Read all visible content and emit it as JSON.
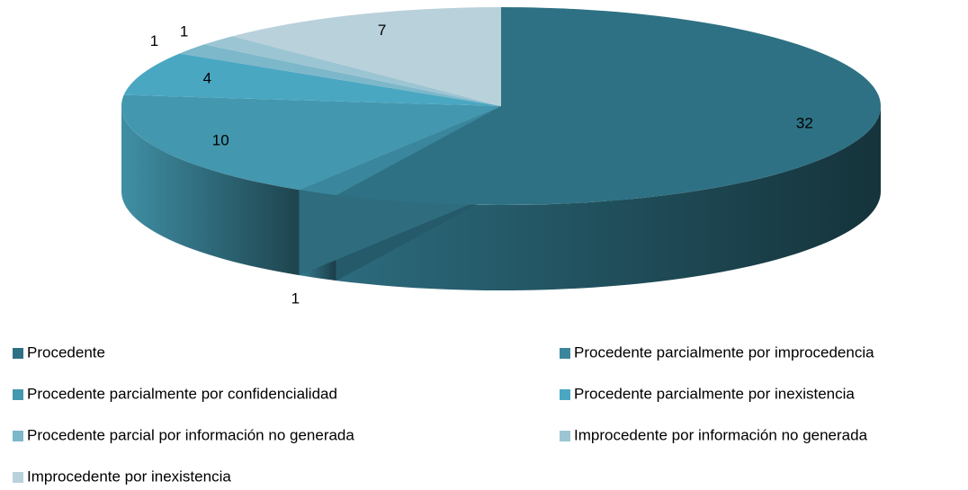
{
  "chart_data": {
    "type": "pie3d",
    "categories": [
      "Procedente",
      "Procedente parcialmente por improcedencia",
      "Procedente parcialmente por confidencialidad",
      "Procedente parcialmente por inexistencia",
      "Procedente parcial por información no generada",
      "Improcedente por información no generada",
      "Improcedente por inexistencia"
    ],
    "values": [
      32,
      1,
      10,
      4,
      1,
      1,
      7
    ],
    "colors": [
      "#2e7184",
      "#3a879d",
      "#4397ae",
      "#4aa7c2",
      "#7db7ca",
      "#9cc5d3",
      "#b9d1db"
    ]
  }
}
